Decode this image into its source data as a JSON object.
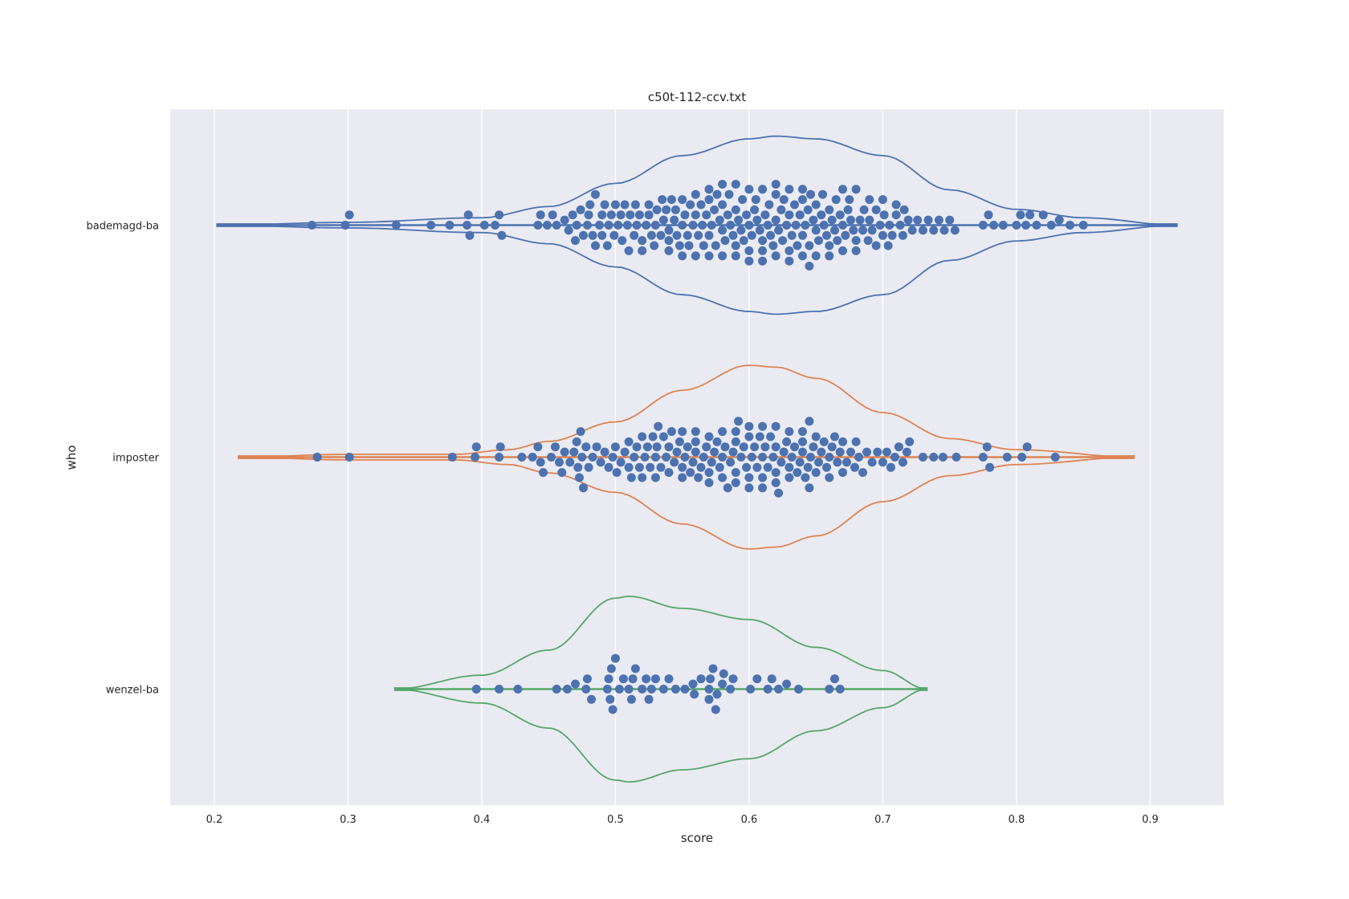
{
  "chart_data": {
    "type": "violin",
    "title": "c50t-112-ccv.txt",
    "xlabel": "score",
    "ylabel": "who",
    "xlim": [
      0.167,
      0.955
    ],
    "xticks": [
      0.2,
      0.3,
      0.4,
      0.5,
      0.6,
      0.7,
      0.8,
      0.9
    ],
    "xtick_labels": [
      "0.2",
      "0.3",
      "0.4",
      "0.5",
      "0.6",
      "0.7",
      "0.8",
      "0.9"
    ],
    "grid": true,
    "orientation": "horizontal",
    "categories": [
      "bademagd-ba",
      "imposter",
      "wenzel-ba"
    ],
    "series": [
      {
        "color": "#4c72b0",
        "violin_range": [
          0.202,
          0.92
        ],
        "density": [
          [
            0.202,
            0.0
          ],
          [
            0.3,
            0.03
          ],
          [
            0.4,
            0.08
          ],
          [
            0.45,
            0.2
          ],
          [
            0.5,
            0.45
          ],
          [
            0.55,
            0.75
          ],
          [
            0.6,
            0.93
          ],
          [
            0.62,
            0.96
          ],
          [
            0.65,
            0.93
          ],
          [
            0.7,
            0.75
          ],
          [
            0.75,
            0.38
          ],
          [
            0.8,
            0.17
          ],
          [
            0.85,
            0.08
          ],
          [
            0.92,
            0.0
          ]
        ],
        "points": [
          0.273,
          0.298,
          0.301,
          0.336,
          0.362,
          0.376,
          0.389,
          0.39,
          0.391,
          0.402,
          0.41,
          0.413,
          0.415,
          0.442,
          0.444,
          0.449,
          0.453,
          0.456,
          0.462,
          0.465,
          0.468,
          0.47,
          0.471,
          0.474,
          0.476,
          0.479,
          0.481,
          0.483,
          0.485,
          0.488,
          0.49,
          0.492,
          0.494,
          0.497,
          0.499,
          0.502,
          0.504,
          0.507,
          0.509,
          0.511,
          0.514,
          0.516,
          0.518,
          0.52,
          0.523,
          0.525,
          0.527,
          0.529,
          0.531,
          0.534,
          0.536,
          0.538,
          0.54,
          0.542,
          0.544,
          0.546,
          0.548,
          0.55,
          0.552,
          0.554,
          0.556,
          0.558,
          0.56,
          0.562,
          0.564,
          0.566,
          0.568,
          0.57,
          0.572,
          0.574,
          0.576,
          0.578,
          0.58,
          0.582,
          0.584,
          0.586,
          0.588,
          0.59,
          0.592,
          0.594,
          0.596,
          0.598,
          0.6,
          0.602,
          0.604,
          0.606,
          0.608,
          0.61,
          0.612,
          0.614,
          0.616,
          0.618,
          0.62,
          0.622,
          0.624,
          0.626,
          0.628,
          0.63,
          0.632,
          0.634,
          0.636,
          0.638,
          0.64,
          0.642,
          0.644,
          0.646,
          0.648,
          0.65,
          0.652,
          0.654,
          0.656,
          0.658,
          0.66,
          0.662,
          0.664,
          0.666,
          0.668,
          0.67,
          0.672,
          0.674,
          0.676,
          0.678,
          0.68,
          0.683,
          0.686,
          0.689,
          0.692,
          0.695,
          0.698,
          0.701,
          0.704,
          0.707,
          0.71,
          0.713,
          0.716,
          0.719,
          0.722,
          0.726,
          0.73,
          0.734,
          0.738,
          0.742,
          0.746,
          0.75,
          0.754,
          0.775,
          0.779,
          0.783,
          0.79,
          0.8,
          0.803,
          0.807,
          0.81,
          0.815,
          0.82,
          0.826,
          0.832,
          0.84,
          0.85,
          0.56,
          0.565,
          0.57,
          0.575,
          0.58,
          0.585,
          0.59,
          0.595,
          0.6,
          0.605,
          0.61,
          0.615,
          0.62,
          0.625,
          0.63,
          0.635,
          0.64,
          0.645,
          0.65,
          0.655,
          0.66,
          0.665,
          0.67,
          0.675,
          0.68,
          0.685,
          0.69,
          0.695,
          0.7,
          0.705,
          0.71,
          0.715,
          0.52,
          0.525,
          0.53,
          0.535,
          0.54,
          0.545,
          0.55,
          0.555,
          0.5,
          0.505,
          0.51,
          0.515,
          0.48,
          0.485,
          0.49,
          0.495,
          0.6,
          0.61,
          0.62,
          0.63,
          0.64,
          0.59,
          0.58,
          0.57,
          0.62,
          0.63,
          0.64,
          0.645,
          0.61,
          0.6,
          0.59,
          0.58,
          0.57,
          0.56,
          0.55,
          0.54,
          0.65,
          0.66,
          0.67,
          0.68,
          0.69,
          0.7
        ]
      },
      {
        "color": "#dd8452",
        "violin_range": [
          0.218,
          0.888
        ],
        "density": [
          [
            0.218,
            0.0
          ],
          [
            0.3,
            0.03
          ],
          [
            0.38,
            0.03
          ],
          [
            0.42,
            0.08
          ],
          [
            0.45,
            0.17
          ],
          [
            0.5,
            0.38
          ],
          [
            0.55,
            0.72
          ],
          [
            0.6,
            0.99
          ],
          [
            0.62,
            0.97
          ],
          [
            0.65,
            0.85
          ],
          [
            0.7,
            0.48
          ],
          [
            0.75,
            0.2
          ],
          [
            0.8,
            0.08
          ],
          [
            0.888,
            0.0
          ]
        ],
        "points": [
          0.277,
          0.301,
          0.378,
          0.395,
          0.396,
          0.413,
          0.414,
          0.43,
          0.438,
          0.442,
          0.444,
          0.446,
          0.452,
          0.455,
          0.458,
          0.46,
          0.462,
          0.466,
          0.469,
          0.471,
          0.472,
          0.473,
          0.474,
          0.475,
          0.476,
          0.478,
          0.48,
          0.483,
          0.486,
          0.489,
          0.492,
          0.495,
          0.498,
          0.501,
          0.504,
          0.507,
          0.51,
          0.512,
          0.514,
          0.516,
          0.518,
          0.52,
          0.522,
          0.524,
          0.526,
          0.528,
          0.53,
          0.531,
          0.532,
          0.534,
          0.536,
          0.538,
          0.54,
          0.542,
          0.544,
          0.546,
          0.548,
          0.55,
          0.552,
          0.554,
          0.556,
          0.558,
          0.56,
          0.562,
          0.564,
          0.566,
          0.568,
          0.57,
          0.572,
          0.574,
          0.576,
          0.578,
          0.58,
          0.582,
          0.584,
          0.586,
          0.588,
          0.59,
          0.592,
          0.594,
          0.596,
          0.598,
          0.6,
          0.602,
          0.604,
          0.606,
          0.608,
          0.61,
          0.612,
          0.614,
          0.616,
          0.618,
          0.62,
          0.622,
          0.624,
          0.626,
          0.628,
          0.63,
          0.632,
          0.634,
          0.636,
          0.638,
          0.64,
          0.642,
          0.644,
          0.646,
          0.648,
          0.65,
          0.652,
          0.654,
          0.656,
          0.658,
          0.66,
          0.662,
          0.664,
          0.666,
          0.668,
          0.67,
          0.673,
          0.676,
          0.679,
          0.682,
          0.685,
          0.688,
          0.692,
          0.696,
          0.7,
          0.703,
          0.706,
          0.709,
          0.712,
          0.715,
          0.718,
          0.72,
          0.73,
          0.738,
          0.745,
          0.755,
          0.775,
          0.778,
          0.78,
          0.793,
          0.804,
          0.808,
          0.829,
          0.55,
          0.56,
          0.57,
          0.58,
          0.59,
          0.6,
          0.61,
          0.62,
          0.63,
          0.64,
          0.645,
          0.57,
          0.58,
          0.59,
          0.6,
          0.61,
          0.62,
          0.63,
          0.64,
          0.645,
          0.52,
          0.53,
          0.54,
          0.55,
          0.56,
          0.65,
          0.66,
          0.67,
          0.68,
          0.5,
          0.51,
          0.59,
          0.6,
          0.61,
          0.62
        ]
      },
      {
        "color": "#55a868",
        "violin_range": [
          0.335,
          0.733
        ],
        "density": [
          [
            0.335,
            0.0
          ],
          [
            0.4,
            0.15
          ],
          [
            0.45,
            0.42
          ],
          [
            0.5,
            0.98
          ],
          [
            0.51,
            1.0
          ],
          [
            0.55,
            0.87
          ],
          [
            0.6,
            0.75
          ],
          [
            0.65,
            0.45
          ],
          [
            0.7,
            0.2
          ],
          [
            0.733,
            0.0
          ]
        ],
        "points": [
          0.396,
          0.413,
          0.427,
          0.456,
          0.464,
          0.47,
          0.478,
          0.479,
          0.482,
          0.494,
          0.495,
          0.496,
          0.497,
          0.498,
          0.503,
          0.506,
          0.512,
          0.513,
          0.515,
          0.52,
          0.523,
          0.525,
          0.527,
          0.536,
          0.545,
          0.552,
          0.558,
          0.559,
          0.564,
          0.57,
          0.571,
          0.573,
          0.575,
          0.576,
          0.58,
          0.581,
          0.586,
          0.588,
          0.601,
          0.606,
          0.614,
          0.617,
          0.622,
          0.628,
          0.637,
          0.66,
          0.664,
          0.668,
          0.5,
          0.51,
          0.53,
          0.57,
          0.54
        ]
      }
    ]
  }
}
